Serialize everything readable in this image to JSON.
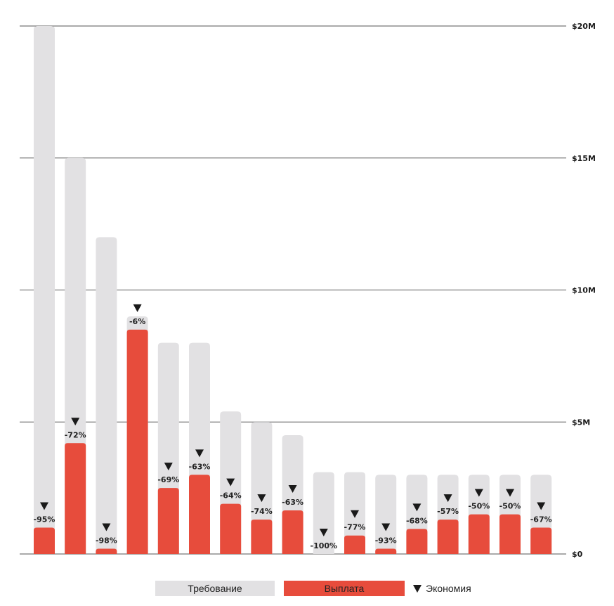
{
  "colors": {
    "claim": "#e2e1e3",
    "payout": "#e74c3c",
    "grid": "#555555",
    "marker": "#1a1a1a"
  },
  "legend": {
    "claim": "Требование",
    "payout": "Выплата",
    "saving": "Экономия"
  },
  "chart_data": {
    "type": "bar",
    "title": "",
    "xlabel": "",
    "ylabel": "",
    "ylim": [
      0,
      20000000
    ],
    "y_ticks": [
      {
        "value": 0,
        "label": "$0"
      },
      {
        "value": 5000000,
        "label": "$5M"
      },
      {
        "value": 10000000,
        "label": "$10M"
      },
      {
        "value": 15000000,
        "label": "$15M"
      },
      {
        "value": 20000000,
        "label": "$20M"
      }
    ],
    "grid": true,
    "legend_position": "bottom",
    "series": [
      {
        "name": "Требование",
        "values": [
          20000000,
          15000000,
          12000000,
          9000000,
          8000000,
          8000000,
          5400000,
          5000000,
          4500000,
          3100000,
          3100000,
          3000000,
          3000000,
          3000000,
          3000000,
          3000000,
          3000000
        ]
      },
      {
        "name": "Выплата",
        "values": [
          1000000,
          4200000,
          200000,
          8500000,
          2500000,
          3000000,
          1900000,
          1300000,
          1650000,
          0,
          700000,
          200000,
          950000,
          1300000,
          1500000,
          1500000,
          1000000
        ]
      }
    ],
    "saving_labels": [
      "-95%",
      "-72%",
      "-98%",
      "-6%",
      "-69%",
      "-63%",
      "-64%",
      "-74%",
      "-63%",
      "-100%",
      "-77%",
      "-93%",
      "-68%",
      "-57%",
      "-50%",
      "-50%",
      "-67%"
    ]
  }
}
